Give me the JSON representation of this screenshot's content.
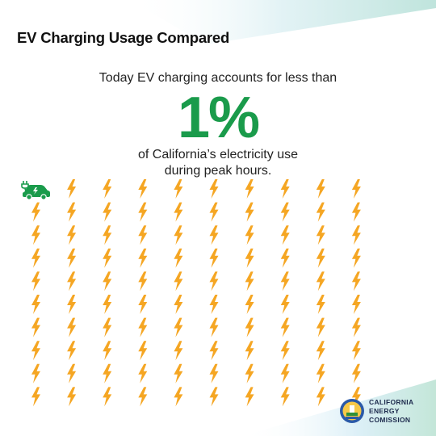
{
  "title": "EV Charging Usage Compared",
  "lead_text": "Today EV charging accounts for less than",
  "percent_value": "1%",
  "tail_line1": "of California’s electricity use",
  "tail_line2": "during peak hours.",
  "icons": {
    "ev": "ev-car-charging-icon",
    "bolt": "lightning-bolt-icon",
    "seal": "california-energy-commission-seal"
  },
  "pictogram": {
    "total_units": 100,
    "ev_units": 1,
    "columns": 11,
    "rows": 10
  },
  "logo": {
    "line1": "CALIFORNIA",
    "line2": "ENERGY",
    "line3": "COMISSION"
  },
  "colors": {
    "accent_green": "#1a9b4b",
    "bolt_orange": "#f5a623",
    "text_dark": "#111111",
    "navy": "#1d2a4d"
  }
}
